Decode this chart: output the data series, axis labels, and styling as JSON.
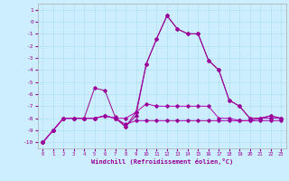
{
  "xlabel": "Windchill (Refroidissement éolien,°C)",
  "xlim": [
    -0.5,
    23.5
  ],
  "ylim": [
    -10.5,
    1.5
  ],
  "yticks": [
    1,
    0,
    -1,
    -2,
    -3,
    -4,
    -5,
    -6,
    -7,
    -8,
    -9,
    -10
  ],
  "xticks": [
    0,
    1,
    2,
    3,
    4,
    5,
    6,
    7,
    8,
    9,
    10,
    11,
    12,
    13,
    14,
    15,
    16,
    17,
    18,
    19,
    20,
    21,
    22,
    23
  ],
  "bg_color": "#cceeff",
  "line_color": "#990099",
  "hours": [
    0,
    1,
    2,
    3,
    4,
    5,
    6,
    7,
    8,
    9,
    10,
    11,
    12,
    13,
    14,
    15,
    16,
    17,
    18,
    19,
    20,
    21,
    22,
    23
  ],
  "y_main": [
    -10,
    -9,
    -8,
    -8,
    -8,
    -8,
    -7.8,
    -8,
    -8.7,
    -7.8,
    -3.5,
    -1.4,
    0.5,
    -0.6,
    -1.0,
    -1.0,
    -3.2,
    -4.0,
    -6.5,
    -7.0,
    -8.0,
    -8.0,
    -7.8,
    -8.0
  ],
  "y_flat1": [
    -10,
    -9,
    -8,
    -8,
    -8,
    -8,
    -7.8,
    -8,
    -8.0,
    -7.5,
    -6.8,
    -7.0,
    -7.0,
    -7.0,
    -7.0,
    -7.0,
    -7.0,
    -8.0,
    -8.0,
    -8.2,
    -8.2,
    -8.0,
    -8.0,
    -8.0
  ],
  "y_flat2": [
    -10,
    -9,
    -8,
    -8,
    -8,
    -8,
    -7.8,
    -8,
    -8.5,
    -8.2,
    -8.2,
    -8.2,
    -8.2,
    -8.2,
    -8.2,
    -8.2,
    -8.2,
    -8.2,
    -8.2,
    -8.2,
    -8.2,
    -8.2,
    -8.2,
    -8.2
  ],
  "y_peak2": [
    -10,
    -9,
    -8,
    -8,
    -8,
    -5.5,
    -5.7,
    -7.9,
    -8.7,
    -7.5,
    -3.5,
    -1.4,
    0.5,
    -0.6,
    -1.0,
    -1.0,
    -3.2,
    -4.0,
    -6.5,
    -7.0,
    -8.0,
    -8.0,
    -7.8,
    -8.0
  ]
}
